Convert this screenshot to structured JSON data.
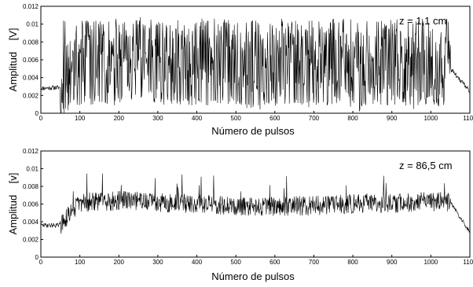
{
  "chart_data": [
    {
      "type": "line",
      "annotation": "z = 1,1 cm",
      "xlabel": "Número de pulsos",
      "ylabel": "Amplitud    [V]",
      "xlim": [
        0,
        1100
      ],
      "ylim": [
        0,
        0.012
      ],
      "x_ticks": [
        0,
        100,
        200,
        300,
        400,
        500,
        600,
        700,
        800,
        900,
        1000,
        1100
      ],
      "y_ticks": [
        0,
        0.002,
        0.004,
        0.006,
        0.008,
        0.01,
        0.012
      ],
      "x_tick_labels": [
        "0",
        "100",
        "200",
        "300",
        "400",
        "500",
        "600",
        "700",
        "800",
        "900",
        "1000",
        "1100"
      ],
      "y_tick_labels": [
        "0",
        "0.002",
        "0.004",
        "0.006",
        "0.008",
        "0.01",
        "0.012"
      ],
      "grid": false,
      "line_color": "#000000",
      "series": [
        {
          "x": [
            0,
            50,
            100,
            150,
            200,
            250,
            300,
            350,
            400,
            450,
            500,
            550,
            600,
            650,
            700,
            750,
            800,
            850,
            900,
            950,
            1000,
            1050,
            1100
          ],
          "y": [
            0.0028,
            0.0029,
            0.0058,
            0.006,
            0.0055,
            0.0062,
            0.0058,
            0.005,
            0.006,
            0.0055,
            0.0058,
            0.0045,
            0.0052,
            0.0055,
            0.005,
            0.0052,
            0.0046,
            0.005,
            0.0052,
            0.0048,
            0.0052,
            0.005,
            0.0025
          ]
        }
      ]
    },
    {
      "type": "line",
      "annotation": "z = 86,5 cm",
      "xlabel": "Número de pulsos",
      "ylabel": "Amplitud    [v]",
      "xlim": [
        0,
        1100
      ],
      "ylim": [
        0,
        0.012
      ],
      "x_ticks": [
        0,
        100,
        200,
        300,
        400,
        500,
        600,
        700,
        800,
        900,
        1000,
        1100
      ],
      "y_ticks": [
        0,
        0.002,
        0.004,
        0.006,
        0.008,
        0.01,
        0.012
      ],
      "x_tick_labels": [
        "0",
        "100",
        "200",
        "300",
        "400",
        "500",
        "600",
        "700",
        "800",
        "900",
        "1000",
        "1100"
      ],
      "y_tick_labels": [
        "0",
        "0.002",
        "0.004",
        "0.006",
        "0.008",
        "0.01",
        "0.012"
      ],
      "grid": false,
      "line_color": "#000000",
      "series": [
        {
          "x": [
            0,
            50,
            100,
            150,
            200,
            250,
            300,
            350,
            400,
            450,
            500,
            550,
            600,
            650,
            700,
            750,
            800,
            850,
            900,
            950,
            1000,
            1050,
            1100
          ],
          "y": [
            0.0036,
            0.0036,
            0.0062,
            0.0063,
            0.0064,
            0.0064,
            0.0062,
            0.0061,
            0.006,
            0.0059,
            0.0058,
            0.0058,
            0.0057,
            0.0058,
            0.0058,
            0.0059,
            0.006,
            0.0061,
            0.0061,
            0.0062,
            0.0063,
            0.0062,
            0.0028
          ]
        }
      ]
    }
  ]
}
